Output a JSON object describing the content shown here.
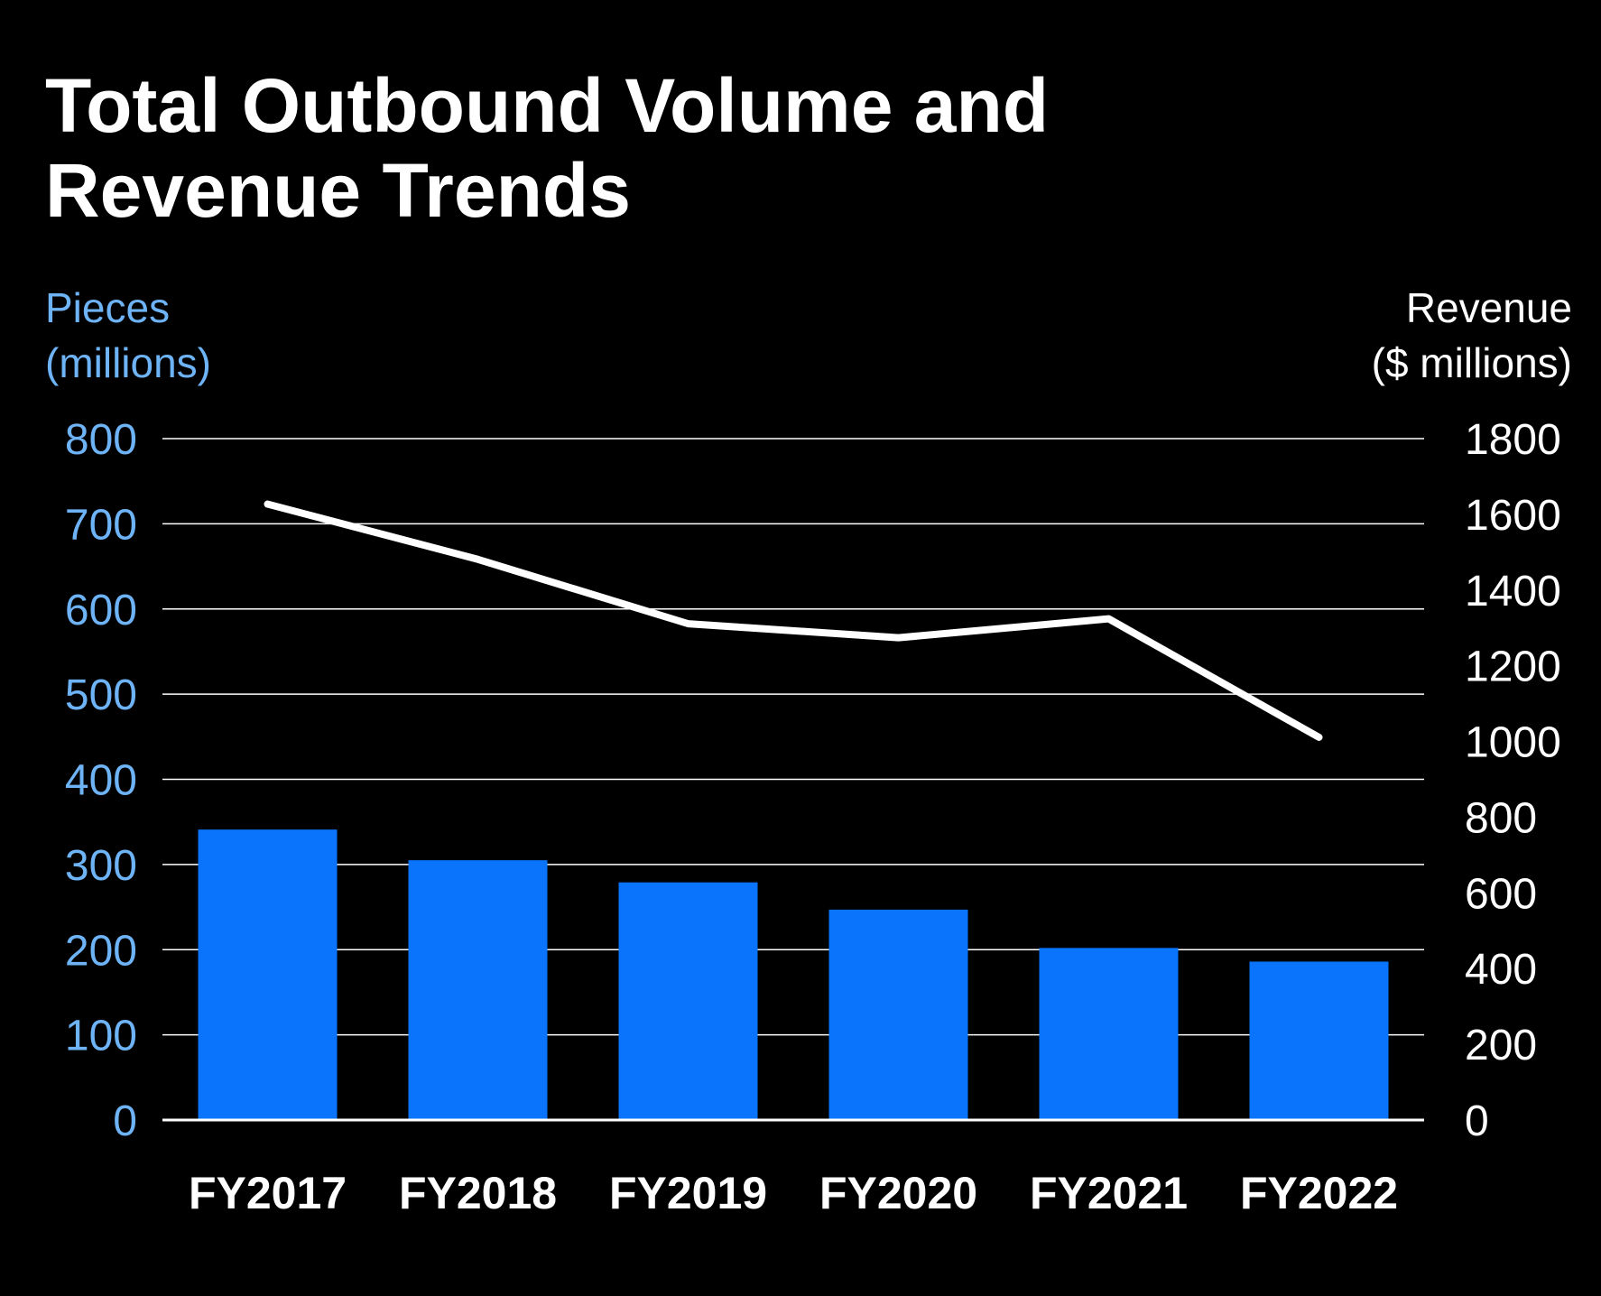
{
  "chart_data": {
    "type": "bar",
    "title": "Total Outbound Volume and\nRevenue Trends",
    "categories": [
      "FY2017",
      "FY2018",
      "FY2019",
      "FY2020",
      "FY2021",
      "FY2022"
    ],
    "series": [
      {
        "name": "Pieces",
        "type": "bar",
        "axis": "left",
        "color": "#0a74fd",
        "values": [
          341,
          305,
          279,
          247,
          202,
          186
        ]
      },
      {
        "name": "Revenue",
        "type": "line",
        "axis": "right",
        "color": "#ffffff",
        "values": [
          1627,
          1481,
          1311,
          1274,
          1324,
          1011
        ]
      }
    ],
    "left_axis": {
      "label_line1": "Pieces",
      "label_line2": "(millions)",
      "ticks": [
        "0",
        "100",
        "200",
        "300",
        "400",
        "500",
        "600",
        "700",
        "800"
      ],
      "ylim": [
        0,
        800
      ],
      "color": "#6db3f5"
    },
    "right_axis": {
      "label_line1": "Revenue",
      "label_line2": "($ millions)",
      "ticks": [
        "0",
        "200",
        "400",
        "600",
        "800",
        "1000",
        "1200",
        "1400",
        "1600",
        "1800"
      ],
      "ylim": [
        0,
        1800
      ],
      "color": "#ffffff"
    },
    "grid": true,
    "legend": "none"
  }
}
